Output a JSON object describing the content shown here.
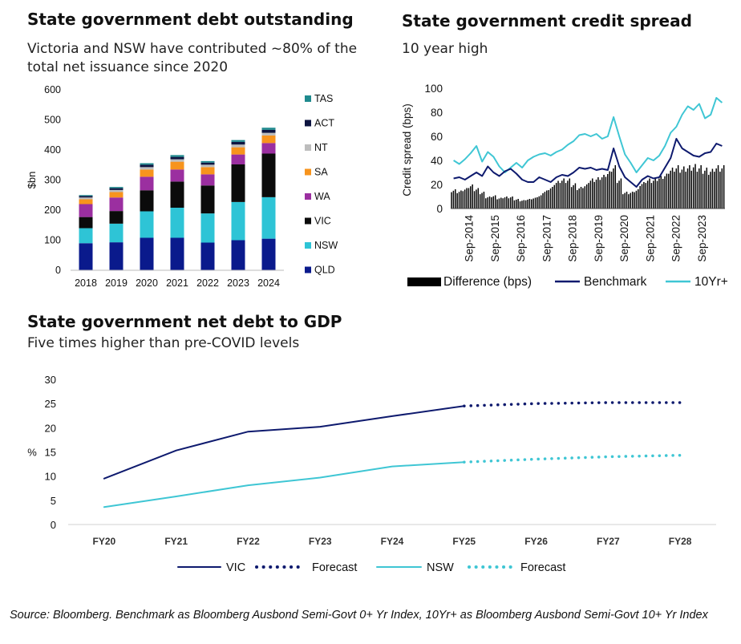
{
  "panels": {
    "debt": {
      "title": "State government debt outstanding",
      "subtitle": "Victoria and NSW have contributed ~80% of the total net issuance since 2020"
    },
    "spread": {
      "title": "State government credit spread",
      "subtitle": "10 year high"
    },
    "gdp": {
      "title": "State government net debt to GDP",
      "subtitle": "Five times higher than pre-COVID levels"
    }
  },
  "source_note": "Source: Bloomberg. Benchmark as Bloomberg Ausbond Semi-Govt 0+ Yr Index, 10Yr+ as Bloomberg Ausbond Semi-Govt 10+ Yr Index",
  "chart_data": [
    {
      "type": "bar",
      "stacked": true,
      "ylabel": "$bn",
      "ylim": [
        0,
        600
      ],
      "yticks": [
        0,
        100,
        200,
        300,
        400,
        500,
        600
      ],
      "categories": [
        "2018",
        "2019",
        "2020",
        "2021",
        "2022",
        "2023",
        "2024"
      ],
      "series": [
        {
          "name": "QLD",
          "color": "#0a1a8c",
          "values": [
            90,
            93,
            108,
            108,
            92,
            100,
            105
          ]
        },
        {
          "name": "NSW",
          "color": "#2ec4d6",
          "values": [
            50,
            62,
            88,
            100,
            97,
            127,
            138
          ]
        },
        {
          "name": "VIC",
          "color": "#0b0b0b",
          "values": [
            37,
            42,
            70,
            87,
            93,
            125,
            145
          ]
        },
        {
          "name": "WA",
          "color": "#9b2fa0",
          "values": [
            43,
            45,
            45,
            40,
            37,
            33,
            35
          ]
        },
        {
          "name": "SA",
          "color": "#f7941d",
          "values": [
            16,
            18,
            24,
            26,
            24,
            24,
            25
          ]
        },
        {
          "name": "NT",
          "color": "#bdbdbd",
          "values": [
            6,
            7,
            8,
            8,
            8,
            9,
            9
          ]
        },
        {
          "name": "ACT",
          "color": "#0d1440",
          "values": [
            5,
            6,
            8,
            8,
            7,
            9,
            10
          ]
        },
        {
          "name": "TAS",
          "color": "#1f8a8e",
          "values": [
            3,
            4,
            5,
            6,
            5,
            6,
            7
          ]
        }
      ],
      "legend_position": "right"
    },
    {
      "type": "line",
      "ylabel": "Credit spread (bps)",
      "ylim": [
        0,
        100
      ],
      "yticks": [
        0,
        20,
        40,
        60,
        80,
        100
      ],
      "x_ticks": [
        "Sep-2014",
        "Sep-2015",
        "Sep-2016",
        "Sep-2017",
        "Sep-2018",
        "Sep-2019",
        "Sep-2020",
        "Sep-2021",
        "Sep-2022",
        "Sep-2023"
      ],
      "x_start": "2014-01",
      "x_end": "2024-08",
      "series": [
        {
          "name": "Difference (bps)",
          "kind": "bar",
          "color": "#000000",
          "values": [
            16,
            15,
            17,
            20,
            17,
            14,
            10,
            11,
            9,
            10,
            10,
            8,
            7,
            8,
            9,
            11,
            15,
            18,
            23,
            25,
            25,
            21,
            18,
            20,
            25,
            26,
            28,
            31,
            36,
            25,
            14,
            14,
            16,
            22,
            25,
            25,
            27,
            29,
            34,
            36,
            35,
            36,
            37,
            36,
            34,
            33,
            36,
            36
          ]
        },
        {
          "name": "Benchmark",
          "kind": "line",
          "color": "#0e1a6e",
          "values": [
            25,
            26,
            24,
            27,
            30,
            27,
            35,
            30,
            27,
            31,
            33,
            29,
            24,
            22,
            22,
            26,
            24,
            22,
            26,
            28,
            27,
            30,
            34,
            33,
            34,
            32,
            33,
            32,
            50,
            35,
            26,
            22,
            18,
            24,
            27,
            25,
            26,
            34,
            42,
            58,
            50,
            47,
            44,
            43,
            46,
            47,
            54,
            52
          ]
        },
        {
          "name": "10Yr+",
          "kind": "line",
          "color": "#3fc6d4",
          "values": [
            40,
            37,
            41,
            46,
            52,
            39,
            47,
            43,
            35,
            30,
            34,
            38,
            34,
            40,
            43,
            45,
            46,
            44,
            47,
            49,
            53,
            56,
            61,
            62,
            60,
            62,
            58,
            60,
            76,
            60,
            45,
            38,
            30,
            36,
            42,
            40,
            44,
            52,
            63,
            68,
            78,
            85,
            82,
            87,
            75,
            78,
            92,
            88
          ]
        }
      ],
      "legend_position": "bottom"
    },
    {
      "type": "line",
      "ylabel": "%",
      "ylim": [
        0,
        30
      ],
      "yticks": [
        0,
        5,
        10,
        15,
        20,
        25,
        30
      ],
      "categories": [
        "FY20",
        "FY21",
        "FY22",
        "FY23",
        "FY24",
        "FY25",
        "FY26",
        "FY27",
        "FY28"
      ],
      "series": [
        {
          "name": "VIC",
          "color": "#0e1a6e",
          "style": "solid",
          "values": [
            9.5,
            15.3,
            19.2,
            20.2,
            22.4,
            24.5,
            null,
            null,
            null
          ]
        },
        {
          "name": "Forecast",
          "color": "#0e1a6e",
          "style": "dotted",
          "values": [
            null,
            null,
            null,
            null,
            null,
            24.5,
            25.0,
            25.2,
            25.2
          ]
        },
        {
          "name": "NSW",
          "color": "#3fc6d4",
          "style": "solid",
          "values": [
            3.6,
            5.8,
            8.1,
            9.7,
            12.0,
            12.9,
            null,
            null,
            null
          ]
        },
        {
          "name": "Forecast",
          "color": "#3fc6d4",
          "style": "dotted",
          "values": [
            null,
            null,
            null,
            null,
            null,
            12.9,
            13.5,
            14.0,
            14.3
          ]
        }
      ],
      "legend_position": "bottom"
    }
  ]
}
